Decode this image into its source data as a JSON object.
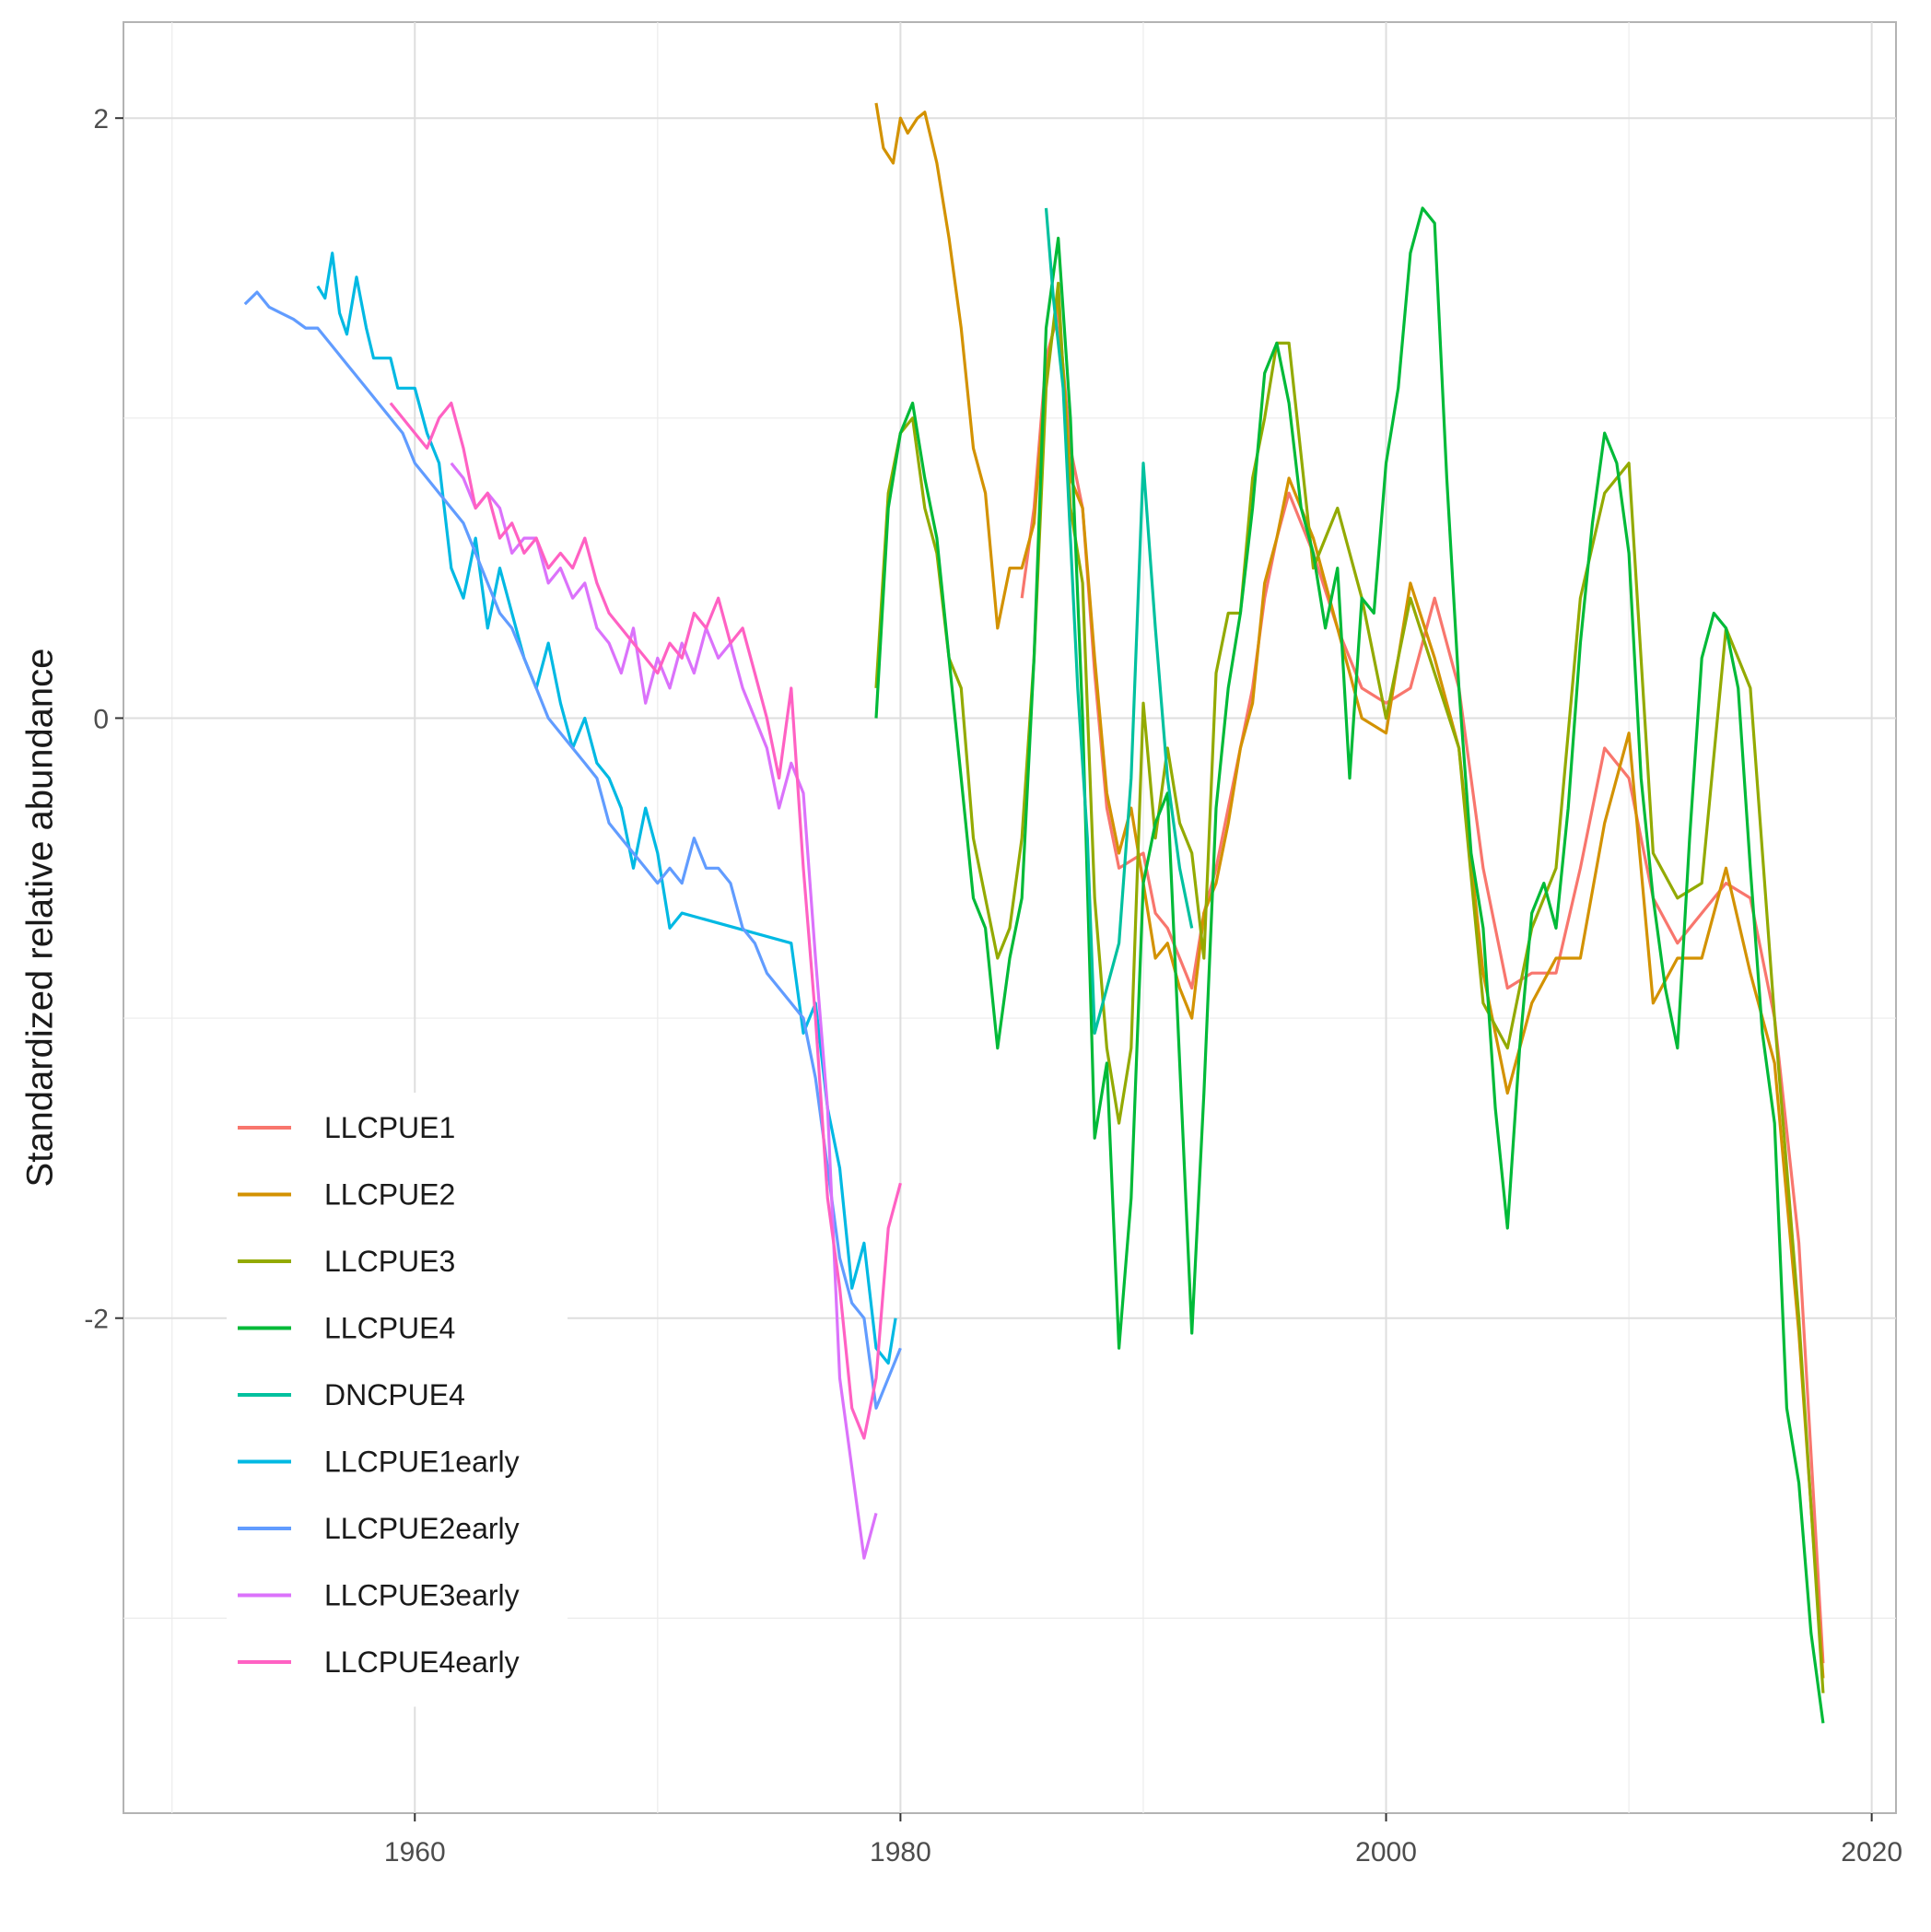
{
  "chart_data": {
    "type": "line",
    "title": "",
    "xlabel": "",
    "ylabel": "Standardized relative abundance",
    "xlim": [
      1948,
      2021
    ],
    "ylim": [
      -3.65,
      2.32
    ],
    "x_ticks": [
      1960,
      1980,
      2000,
      2020
    ],
    "y_ticks": [
      -2,
      0,
      2
    ],
    "y_minor_gridlines": [
      -3,
      -1,
      1
    ],
    "x_minor_gridlines": [
      1950,
      1970,
      1990,
      2010
    ],
    "grid": true,
    "legend_position": "bottom-left inside",
    "colors": {
      "LLCPUE1": "#F8766D",
      "LLCPUE2": "#D39200",
      "LLCPUE3": "#93AA00",
      "LLCPUE4": "#00BA38",
      "DNCPUE4": "#00C19F",
      "LLCPUE1early": "#00B9E3",
      "LLCPUE2early": "#619CFF",
      "LLCPUE3early": "#DB72FB",
      "LLCPUE4early": "#FF61C3"
    },
    "series": [
      {
        "name": "LLCPUE1",
        "x": [
          1985.0,
          1985.5,
          1986.0,
          1986.5,
          1987.0,
          1987.5,
          1988.0,
          1988.5,
          1989.0,
          1990.0,
          1990.5,
          1991.0,
          1991.5,
          1992.0,
          1992.5,
          1993.0,
          1993.5,
          1994.0,
          1994.5,
          1995.0,
          1995.5,
          1996.0,
          1997.0,
          1998.0,
          1999.0,
          2000.0,
          2001.0,
          2002.0,
          2003.0,
          2004.0,
          2005.0,
          2006.0,
          2007.0,
          2008.0,
          2009.0,
          2010.0,
          2011.0,
          2012.0,
          2013.0,
          2014.0,
          2015.0,
          2016.0,
          2017.0,
          2018.0
        ],
        "y": [
          0.4,
          0.7,
          1.2,
          1.35,
          0.9,
          0.7,
          0.15,
          -0.3,
          -0.5,
          -0.45,
          -0.65,
          -0.7,
          -0.8,
          -0.9,
          -0.65,
          -0.5,
          -0.3,
          -0.1,
          0.1,
          0.4,
          0.6,
          0.75,
          0.55,
          0.3,
          0.1,
          0.05,
          0.1,
          0.4,
          0.1,
          -0.5,
          -0.9,
          -0.85,
          -0.85,
          -0.5,
          -0.1,
          -0.2,
          -0.6,
          -0.75,
          -0.65,
          -0.55,
          -0.6,
          -1.0,
          -1.75,
          -3.15
        ]
      },
      {
        "name": "LLCPUE2",
        "x": [
          1979.0,
          1979.3,
          1979.7,
          1980.0,
          1980.3,
          1980.7,
          1981.0,
          1981.5,
          1982.0,
          1982.5,
          1983.0,
          1983.5,
          1984.0,
          1984.5,
          1985.0,
          1985.5,
          1986.0,
          1986.5,
          1987.0,
          1987.5,
          1988.0,
          1988.5,
          1989.0,
          1989.5,
          1990.0,
          1990.5,
          1991.0,
          1991.5,
          1992.0,
          1992.5,
          1993.0,
          1993.5,
          1994.0,
          1994.5,
          1995.0,
          1995.5,
          1996.0,
          1997.0,
          1998.0,
          1999.0,
          2000.0,
          2001.0,
          2002.0,
          2003.0,
          2004.0,
          2005.0,
          2006.0,
          2007.0,
          2008.0,
          2009.0,
          2010.0,
          2011.0,
          2012.0,
          2013.0,
          2014.0,
          2015.0,
          2016.0,
          2017.0,
          2018.0
        ],
        "y": [
          2.05,
          1.9,
          1.85,
          2.0,
          1.95,
          2.0,
          2.02,
          1.85,
          1.6,
          1.3,
          0.9,
          0.75,
          0.3,
          0.5,
          0.5,
          0.65,
          1.15,
          1.4,
          0.8,
          0.7,
          0.2,
          -0.25,
          -0.45,
          -0.3,
          -0.55,
          -0.8,
          -0.75,
          -0.9,
          -1.0,
          -0.65,
          -0.55,
          -0.35,
          -0.1,
          0.05,
          0.45,
          0.6,
          0.8,
          0.6,
          0.3,
          0.0,
          -0.05,
          0.45,
          0.2,
          -0.1,
          -0.85,
          -1.25,
          -0.95,
          -0.8,
          -0.8,
          -0.35,
          -0.05,
          -0.95,
          -0.8,
          -0.8,
          -0.5,
          -0.85,
          -1.15,
          -2.05,
          -3.2
        ]
      },
      {
        "name": "LLCPUE3",
        "x": [
          1979.0,
          1979.5,
          1980.0,
          1980.5,
          1981.0,
          1981.5,
          1982.0,
          1982.5,
          1983.0,
          1983.5,
          1984.0,
          1984.5,
          1985.0,
          1985.5,
          1986.0,
          1986.5,
          1987.0,
          1987.5,
          1988.0,
          1988.5,
          1989.0,
          1989.5,
          1990.0,
          1990.5,
          1991.0,
          1991.5,
          1992.0,
          1992.5,
          1993.0,
          1993.5,
          1994.0,
          1994.5,
          1995.0,
          1995.5,
          1996.0,
          1997.0,
          1998.0,
          1999.0,
          2000.0,
          2001.0,
          2002.0,
          2003.0,
          2004.0,
          2005.0,
          2006.0,
          2007.0,
          2008.0,
          2009.0,
          2010.0,
          2011.0,
          2012.0,
          2013.0,
          2014.0,
          2015.0,
          2016.0,
          2017.0,
          2018.0
        ],
        "y": [
          0.1,
          0.75,
          0.95,
          1.0,
          0.7,
          0.55,
          0.2,
          0.1,
          -0.4,
          -0.6,
          -0.8,
          -0.7,
          -0.4,
          0.2,
          1.1,
          1.45,
          0.7,
          0.45,
          -0.6,
          -1.1,
          -1.35,
          -1.1,
          0.05,
          -0.4,
          -0.1,
          -0.35,
          -0.45,
          -0.8,
          0.15,
          0.35,
          0.35,
          0.8,
          1.0,
          1.25,
          1.25,
          0.5,
          0.7,
          0.4,
          0.0,
          0.4,
          0.15,
          -0.1,
          -0.95,
          -1.1,
          -0.7,
          -0.5,
          0.4,
          0.75,
          0.85,
          -0.45,
          -0.6,
          -0.55,
          0.3,
          0.1,
          -1.0,
          -2.0,
          -3.25
        ]
      },
      {
        "name": "LLCPUE4",
        "x": [
          1979.0,
          1979.5,
          1980.0,
          1980.5,
          1981.0,
          1981.5,
          1982.0,
          1982.5,
          1983.0,
          1983.5,
          1984.0,
          1984.5,
          1985.0,
          1985.5,
          1986.0,
          1986.5,
          1987.0,
          1987.5,
          1988.0,
          1988.5,
          1989.0,
          1989.5,
          1990.0,
          1990.5,
          1991.0,
          1991.5,
          1992.0,
          1992.5,
          1993.0,
          1993.5,
          1994.0,
          1994.5,
          1995.0,
          1995.5,
          1996.0,
          1996.5,
          1997.0,
          1997.5,
          1998.0,
          1998.5,
          1999.0,
          1999.5,
          2000.0,
          2000.5,
          2001.0,
          2001.5,
          2002.0,
          2002.5,
          2003.0,
          2003.5,
          2004.0,
          2004.5,
          2005.0,
          2005.5,
          2006.0,
          2006.5,
          2007.0,
          2007.5,
          2008.0,
          2008.5,
          2009.0,
          2009.5,
          2010.0,
          2010.5,
          2011.0,
          2011.5,
          2012.0,
          2012.5,
          2013.0,
          2013.5,
          2014.0,
          2014.5,
          2015.0,
          2015.5,
          2016.0,
          2016.5,
          2017.0,
          2017.5,
          2018.0
        ],
        "y": [
          0.0,
          0.7,
          0.95,
          1.05,
          0.8,
          0.6,
          0.2,
          -0.2,
          -0.6,
          -0.7,
          -1.1,
          -0.8,
          -0.6,
          0.2,
          1.3,
          1.6,
          1.0,
          0.0,
          -1.4,
          -1.15,
          -2.1,
          -1.6,
          -0.55,
          -0.35,
          -0.25,
          -1.15,
          -2.05,
          -1.25,
          -0.3,
          0.1,
          0.35,
          0.7,
          1.15,
          1.25,
          1.05,
          0.7,
          0.55,
          0.3,
          0.5,
          -0.2,
          0.4,
          0.35,
          0.85,
          1.1,
          1.55,
          1.7,
          1.65,
          0.8,
          0.1,
          -0.45,
          -0.7,
          -1.3,
          -1.7,
          -1.1,
          -0.65,
          -0.55,
          -0.7,
          -0.3,
          0.25,
          0.65,
          0.95,
          0.85,
          0.55,
          -0.2,
          -0.6,
          -0.9,
          -1.1,
          -0.4,
          0.2,
          0.35,
          0.3,
          0.1,
          -0.5,
          -1.05,
          -1.35,
          -2.3,
          -2.55,
          -3.05,
          -3.35
        ]
      },
      {
        "name": "DNCPUE4",
        "x": [
          1986.0,
          1986.3,
          1986.7,
          1987.0,
          1987.3,
          1987.7,
          1988.0,
          1988.5,
          1989.0,
          1989.5,
          1990.0,
          1990.5,
          1991.0,
          1991.5,
          1992.0
        ],
        "y": [
          1.7,
          1.4,
          1.1,
          0.6,
          0.1,
          -0.4,
          -1.05,
          -0.9,
          -0.75,
          -0.2,
          0.85,
          0.3,
          -0.2,
          -0.5,
          -0.7
        ]
      },
      {
        "name": "LLCPUE1early",
        "x": [
          1956.0,
          1956.3,
          1956.6,
          1956.9,
          1957.2,
          1957.6,
          1958.0,
          1958.3,
          1959.0,
          1959.3,
          1960.0,
          1960.5,
          1961.0,
          1961.5,
          1962.0,
          1962.5,
          1963.0,
          1963.5,
          1964.0,
          1964.5,
          1965.0,
          1965.5,
          1966.0,
          1966.5,
          1967.0,
          1967.5,
          1968.0,
          1968.5,
          1969.0,
          1969.5,
          1970.0,
          1970.5,
          1971.0,
          1975.5,
          1976.0,
          1976.5,
          1977.0,
          1977.5,
          1978.0,
          1978.5,
          1979.0,
          1979.5,
          1979.8
        ],
        "y": [
          1.44,
          1.4,
          1.55,
          1.35,
          1.28,
          1.47,
          1.3,
          1.2,
          1.2,
          1.1,
          1.1,
          0.95,
          0.85,
          0.5,
          0.4,
          0.6,
          0.3,
          0.5,
          0.35,
          0.2,
          0.1,
          0.25,
          0.05,
          -0.1,
          0.0,
          -0.15,
          -0.2,
          -0.3,
          -0.5,
          -0.3,
          -0.45,
          -0.7,
          -0.65,
          -0.75,
          -1.05,
          -0.95,
          -1.3,
          -1.5,
          -1.9,
          -1.75,
          -2.1,
          -2.15,
          -2.0
        ]
      },
      {
        "name": "LLCPUE2early",
        "x": [
          1953.0,
          1953.5,
          1954.0,
          1954.5,
          1955.0,
          1955.5,
          1956.0,
          1956.5,
          1957.0,
          1957.5,
          1958.0,
          1958.5,
          1959.0,
          1959.5,
          1960.0,
          1960.5,
          1961.0,
          1961.5,
          1962.0,
          1962.5,
          1963.0,
          1963.5,
          1964.0,
          1964.5,
          1965.0,
          1965.5,
          1966.0,
          1966.5,
          1967.0,
          1967.5,
          1968.0,
          1968.5,
          1969.0,
          1969.5,
          1970.0,
          1970.5,
          1971.0,
          1971.5,
          1972.0,
          1972.5,
          1973.0,
          1973.5,
          1974.0,
          1974.5,
          1975.0,
          1975.5,
          1976.0,
          1976.5,
          1977.0,
          1977.5,
          1978.0,
          1978.5,
          1979.0,
          1979.5,
          1980.0
        ],
        "y": [
          1.38,
          1.42,
          1.37,
          1.35,
          1.33,
          1.3,
          1.3,
          1.25,
          1.2,
          1.15,
          1.1,
          1.05,
          1.0,
          0.95,
          0.85,
          0.8,
          0.75,
          0.7,
          0.65,
          0.55,
          0.45,
          0.35,
          0.3,
          0.2,
          0.1,
          0.0,
          -0.05,
          -0.1,
          -0.15,
          -0.2,
          -0.35,
          -0.4,
          -0.45,
          -0.5,
          -0.55,
          -0.5,
          -0.55,
          -0.4,
          -0.5,
          -0.5,
          -0.55,
          -0.7,
          -0.75,
          -0.85,
          -0.9,
          -0.95,
          -1.0,
          -1.2,
          -1.5,
          -1.8,
          -1.95,
          -2.0,
          -2.3,
          -2.2,
          -2.1
        ]
      },
      {
        "name": "LLCPUE3early",
        "x": [
          1961.5,
          1962.0,
          1962.5,
          1963.0,
          1963.5,
          1964.0,
          1964.5,
          1965.0,
          1965.5,
          1966.0,
          1966.5,
          1967.0,
          1967.5,
          1968.0,
          1968.5,
          1969.0,
          1969.5,
          1970.0,
          1970.5,
          1971.0,
          1971.5,
          1972.0,
          1972.5,
          1973.0,
          1973.5,
          1974.0,
          1974.5,
          1975.0,
          1975.5,
          1976.0,
          1976.5,
          1977.0,
          1977.5,
          1978.0,
          1978.5,
          1979.0
        ],
        "y": [
          0.85,
          0.8,
          0.7,
          0.75,
          0.7,
          0.55,
          0.6,
          0.6,
          0.45,
          0.5,
          0.4,
          0.45,
          0.3,
          0.25,
          0.15,
          0.3,
          0.05,
          0.2,
          0.1,
          0.25,
          0.15,
          0.3,
          0.2,
          0.25,
          0.1,
          0.0,
          -0.1,
          -0.3,
          -0.15,
          -0.25,
          -0.8,
          -1.3,
          -2.2,
          -2.5,
          -2.8,
          -2.65
        ]
      },
      {
        "name": "LLCPUE4early",
        "x": [
          1959.0,
          1959.5,
          1960.0,
          1960.5,
          1961.0,
          1961.5,
          1962.0,
          1962.5,
          1963.0,
          1963.5,
          1964.0,
          1964.5,
          1965.0,
          1965.5,
          1966.0,
          1966.5,
          1967.0,
          1967.5,
          1968.0,
          1968.5,
          1969.0,
          1969.5,
          1970.0,
          1970.5,
          1971.0,
          1971.5,
          1972.0,
          1972.5,
          1973.0,
          1973.5,
          1974.0,
          1974.5,
          1975.0,
          1975.5,
          1976.0,
          1976.5,
          1977.0,
          1977.5,
          1978.0,
          1978.5,
          1979.0,
          1979.5,
          1980.0
        ],
        "y": [
          1.05,
          1.0,
          0.95,
          0.9,
          1.0,
          1.05,
          0.9,
          0.7,
          0.75,
          0.6,
          0.65,
          0.55,
          0.6,
          0.5,
          0.55,
          0.5,
          0.6,
          0.45,
          0.35,
          0.3,
          0.25,
          0.2,
          0.15,
          0.25,
          0.2,
          0.35,
          0.3,
          0.4,
          0.25,
          0.3,
          0.15,
          0.0,
          -0.2,
          0.1,
          -0.5,
          -1.0,
          -1.6,
          -1.9,
          -2.3,
          -2.4,
          -2.2,
          -1.7,
          -1.55
        ]
      }
    ]
  }
}
